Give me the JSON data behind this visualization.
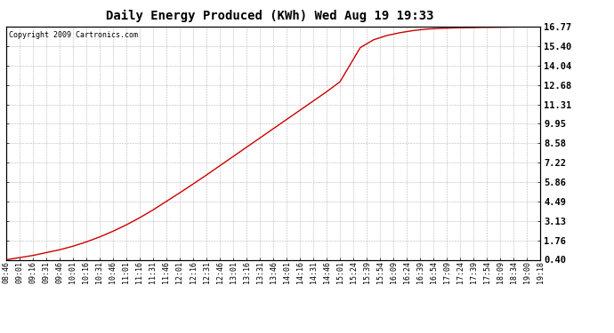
{
  "title": "Daily Energy Produced (KWh) Wed Aug 19 19:33",
  "copyright_text": "Copyright 2009 Cartronics.com",
  "line_color": "#cc0000",
  "background_color": "#ffffff",
  "plot_bg_color": "#ffffff",
  "grid_color": "#999999",
  "yticks": [
    0.4,
    1.76,
    3.13,
    4.49,
    5.86,
    7.22,
    8.58,
    9.95,
    11.31,
    12.68,
    14.04,
    15.4,
    16.77
  ],
  "ymin": 0.4,
  "ymax": 16.77,
  "xtick_labels": [
    "08:46",
    "09:01",
    "09:16",
    "09:31",
    "09:46",
    "10:01",
    "10:16",
    "10:31",
    "10:46",
    "11:01",
    "11:16",
    "11:31",
    "11:46",
    "12:01",
    "12:16",
    "12:31",
    "12:46",
    "13:01",
    "13:16",
    "13:31",
    "13:46",
    "14:01",
    "14:16",
    "14:31",
    "14:46",
    "15:01",
    "15:24",
    "15:39",
    "15:54",
    "16:09",
    "16:24",
    "16:39",
    "16:54",
    "17:09",
    "17:24",
    "17:39",
    "17:54",
    "18:09",
    "18:34",
    "19:00",
    "19:18"
  ],
  "curve_x_normalized": [
    0.0,
    0.025,
    0.05,
    0.075,
    0.1,
    0.125,
    0.15,
    0.175,
    0.2,
    0.225,
    0.25,
    0.275,
    0.3,
    0.325,
    0.35,
    0.375,
    0.4,
    0.425,
    0.45,
    0.475,
    0.5,
    0.525,
    0.55,
    0.575,
    0.6,
    0.625,
    0.663,
    0.688,
    0.713,
    0.738,
    0.763,
    0.788,
    0.813,
    0.838,
    0.863,
    0.888,
    0.913,
    0.938,
    0.963,
    0.988,
    1.0
  ],
  "curve_y_values": [
    0.4,
    0.55,
    0.7,
    0.9,
    1.1,
    1.35,
    1.65,
    2.0,
    2.4,
    2.85,
    3.35,
    3.9,
    4.5,
    5.1,
    5.72,
    6.35,
    7.0,
    7.65,
    8.3,
    8.95,
    9.6,
    10.25,
    10.9,
    11.55,
    12.2,
    12.9,
    15.3,
    15.85,
    16.15,
    16.35,
    16.5,
    16.6,
    16.65,
    16.68,
    16.7,
    16.72,
    16.73,
    16.74,
    16.76,
    16.77,
    16.77
  ],
  "title_fontsize": 10,
  "copyright_fontsize": 6,
  "tick_fontsize": 6,
  "ytick_fontsize": 7.5
}
